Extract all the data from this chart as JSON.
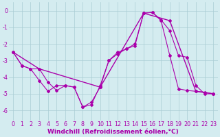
{
  "background_color": "#d4ecf0",
  "grid_color": "#aacdd4",
  "line_color": "#aa00aa",
  "xlabel": "Windchill (Refroidissement éolien,°C)",
  "xlabel_fontsize": 6.5,
  "tick_fontsize": 5.8,
  "xlim": [
    -0.5,
    23.5
  ],
  "ylim": [
    -6.6,
    0.5
  ],
  "yticks": [
    0,
    -1,
    -2,
    -3,
    -4,
    -5,
    -6
  ],
  "xticks": [
    0,
    1,
    2,
    3,
    4,
    5,
    6,
    7,
    8,
    9,
    10,
    11,
    12,
    13,
    14,
    15,
    16,
    17,
    18,
    19,
    20,
    21,
    22,
    23
  ],
  "line1_x": [
    0,
    1,
    2,
    3,
    4,
    5,
    6,
    7,
    8,
    9,
    10,
    11,
    12,
    13,
    14,
    15,
    16,
    17,
    18,
    19,
    20,
    21,
    22,
    23
  ],
  "line1_y": [
    -2.5,
    -3.3,
    -3.5,
    -3.5,
    -4.3,
    -4.8,
    -4.5,
    -4.6,
    -5.8,
    -5.5,
    -4.6,
    -3.0,
    -2.6,
    -2.3,
    -2.0,
    -0.15,
    -0.1,
    -0.6,
    -2.7,
    -4.7,
    -4.8,
    -4.85,
    -4.9,
    -5.0
  ],
  "line2_x": [
    0,
    1,
    2,
    3,
    4,
    5,
    6,
    7,
    8,
    9,
    10,
    11,
    12,
    13,
    14,
    15,
    16,
    17,
    18,
    19,
    20,
    21,
    22,
    23
  ],
  "line2_y": [
    -2.5,
    -3.3,
    -3.5,
    -4.2,
    -4.85,
    -4.5,
    -4.5,
    -4.6,
    -5.8,
    -5.65,
    -4.5,
    -3.0,
    -2.5,
    -2.3,
    -2.1,
    -0.15,
    -0.1,
    -0.55,
    -1.2,
    -2.7,
    -2.8,
    -4.5,
    -5.0,
    -5.0
  ],
  "line3_x": [
    0,
    3,
    10,
    15,
    18,
    21,
    23
  ],
  "line3_y": [
    -2.5,
    -3.5,
    -4.6,
    -0.15,
    -0.6,
    -4.85,
    -5.0
  ]
}
